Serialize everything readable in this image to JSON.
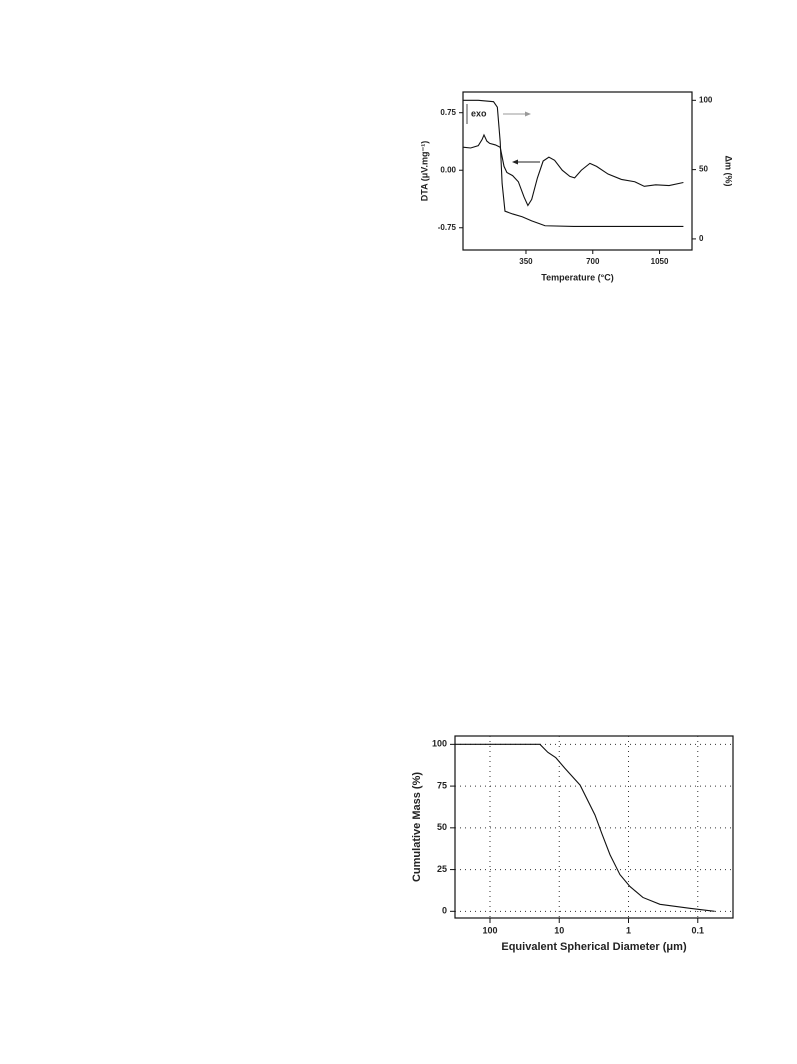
{
  "chart_data": [
    {
      "type": "line",
      "xlabel": "Temperature (°C)",
      "ylabel": "DTA (μV.mg⁻¹)",
      "y2label": "Δm (%)",
      "annotation": "exo",
      "xlim": [
        20,
        1220
      ],
      "xticks": [
        350,
        700,
        1050
      ],
      "ylim": [
        -1.04,
        1.02
      ],
      "yticks": [
        0.75,
        {
          "value": 0,
          "label": "0.00"
        },
        -0.75
      ],
      "y2lim": [
        -8,
        106
      ],
      "y2ticks": [
        0,
        50,
        100
      ],
      "series": [
        {
          "name": "DTA",
          "color": "#111111",
          "x": [
            20,
            60,
            100,
            120,
            130,
            145,
            160,
            190,
            215,
            235,
            250,
            280,
            310,
            340,
            360,
            380,
            410,
            440,
            470,
            500,
            540,
            580,
            605,
            640,
            685,
            720,
            780,
            850,
            920,
            970,
            1030,
            1100,
            1175
          ],
          "values": [
            0.3,
            0.29,
            0.32,
            0.4,
            0.46,
            0.38,
            0.35,
            0.33,
            0.3,
            0.05,
            -0.03,
            -0.07,
            -0.15,
            -0.35,
            -0.46,
            -0.38,
            -0.1,
            0.12,
            0.17,
            0.13,
            0.0,
            -0.08,
            -0.1,
            0.0,
            0.09,
            0.05,
            -0.05,
            -0.12,
            -0.15,
            -0.21,
            -0.19,
            -0.2,
            -0.16
          ]
        },
        {
          "name": "Δm",
          "color": "#111111",
          "axis": "y2",
          "x": [
            20,
            100,
            180,
            200,
            215,
            225,
            240,
            280,
            330,
            380,
            420,
            450,
            600,
            800,
            1000,
            1175
          ],
          "values": [
            100,
            100,
            99,
            95,
            70,
            40,
            20,
            18,
            16,
            13,
            11,
            9.5,
            9,
            9,
            9,
            9
          ]
        }
      ]
    },
    {
      "type": "line",
      "xscale": "log",
      "grid": true,
      "xlabel": "Equivalent Spherical Diameter (μm)",
      "ylabel": "Cumulative Mass (%)",
      "xlim": [
        320,
        0.031
      ],
      "xticks": [
        100,
        10,
        1,
        0.1
      ],
      "ylim": [
        -4,
        105
      ],
      "yticks": [
        0,
        25,
        50,
        75,
        100
      ],
      "series": [
        {
          "name": "Cumulative mass",
          "color": "#111111",
          "x": [
            320,
            19,
            14.6,
            11.2,
            8.3,
            5.0,
            3.05,
            2.42,
            1.85,
            1.33,
            0.955,
            0.62,
            0.352,
            0.13,
            0.057
          ],
          "values": [
            100,
            100,
            95.2,
            92,
            85.7,
            75.6,
            57.7,
            46.4,
            33.9,
            22,
            14.9,
            8.3,
            4.2,
            1.8,
            0
          ]
        }
      ]
    }
  ]
}
